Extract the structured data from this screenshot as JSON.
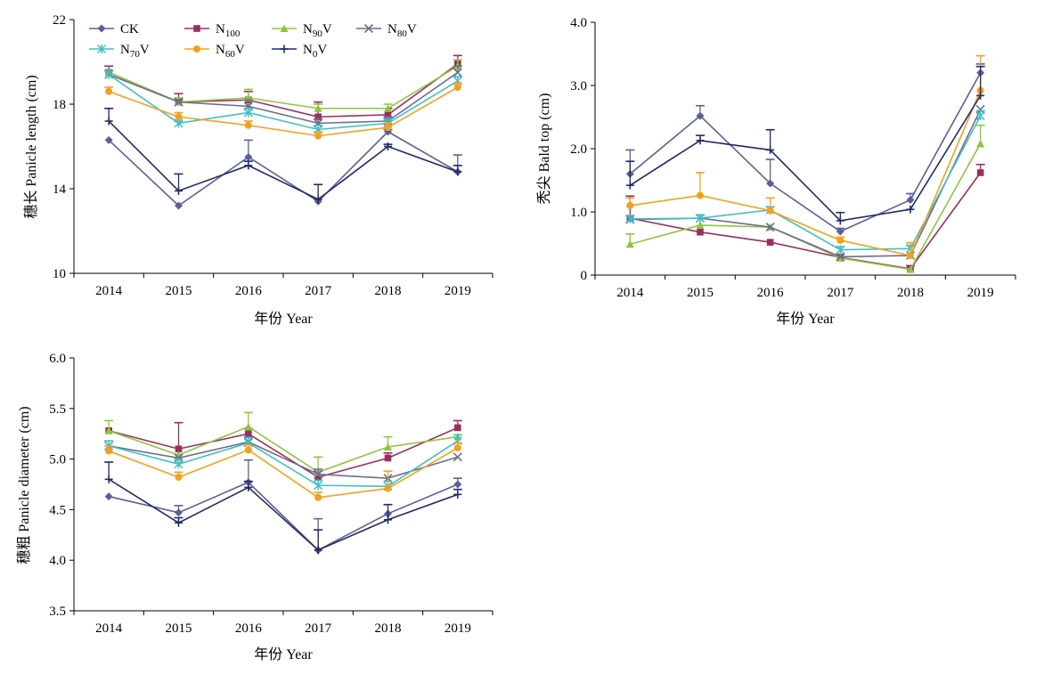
{
  "series_styles": [
    {
      "key": "CK",
      "color": "#5B5F97",
      "marker": "diamond"
    },
    {
      "key": "N100",
      "color": "#9B2D5E",
      "marker": "square"
    },
    {
      "key": "N90V",
      "color": "#8DC63F",
      "marker": "triangle"
    },
    {
      "key": "N80V",
      "color": "#6F6C8E",
      "marker": "x"
    },
    {
      "key": "N70V",
      "color": "#3FBFC8",
      "marker": "asterisk"
    },
    {
      "key": "N60V",
      "color": "#F5A01C",
      "marker": "circle"
    },
    {
      "key": "N0V",
      "color": "#1F2A6B",
      "marker": "plus"
    }
  ],
  "legend": [
    {
      "key": "CK",
      "base": "CK",
      "sub": "",
      "tail": ""
    },
    {
      "key": "N100",
      "base": "N",
      "sub": "100",
      "tail": ""
    },
    {
      "key": "N90V",
      "base": "N",
      "sub": "90",
      "tail": "V"
    },
    {
      "key": "N80V",
      "base": "N",
      "sub": "80",
      "tail": "V"
    },
    {
      "key": "N70V",
      "base": "N",
      "sub": "70",
      "tail": "V"
    },
    {
      "key": "N60V",
      "base": "N",
      "sub": "60",
      "tail": "V"
    },
    {
      "key": "N0V",
      "base": "N",
      "sub": "0",
      "tail": "V"
    }
  ],
  "chart_data": [
    {
      "type": "line",
      "title": "",
      "xlabel": "年份 Year",
      "ylabel": "穗长 Panicle length (cm)",
      "ylim": [
        10,
        22
      ],
      "yticks": [
        10,
        14,
        18,
        22
      ],
      "ytick_labels": [
        "10",
        "14",
        "18",
        "22"
      ],
      "x": [
        "2014",
        "2015",
        "2016",
        "2017",
        "2018",
        "2019"
      ],
      "legend_position": "top-left",
      "series": [
        {
          "key": "CK",
          "name": "CK",
          "values": [
            16.3,
            13.2,
            15.5,
            13.4,
            16.7,
            14.8
          ],
          "errors": [
            0.0,
            0.0,
            0.8,
            0.0,
            0.1,
            0.8
          ]
        },
        {
          "key": "N100",
          "name": "N100",
          "values": [
            19.5,
            18.1,
            18.2,
            17.4,
            17.5,
            19.9
          ],
          "errors": [
            0.3,
            0.4,
            0.4,
            0.7,
            0.3,
            0.4
          ]
        },
        {
          "key": "N90V",
          "name": "N90V",
          "values": [
            19.5,
            18.1,
            18.3,
            17.8,
            17.8,
            19.8
          ],
          "errors": [
            0.0,
            0.2,
            0.4,
            0.2,
            0.2,
            0.3
          ]
        },
        {
          "key": "N80V",
          "name": "N80V",
          "values": [
            19.4,
            18.1,
            17.9,
            17.1,
            17.2,
            19.5
          ],
          "errors": [
            0.2,
            0.1,
            0.3,
            0.2,
            0.2,
            0.3
          ]
        },
        {
          "key": "N70V",
          "name": "N70V",
          "values": [
            19.4,
            17.1,
            17.6,
            16.8,
            17.1,
            19.1
          ],
          "errors": [
            0.2,
            0.1,
            0.2,
            0.2,
            0.2,
            0.2
          ]
        },
        {
          "key": "N60V",
          "name": "N60V",
          "values": [
            18.6,
            17.4,
            17.0,
            16.5,
            16.9,
            18.8
          ],
          "errors": [
            0.2,
            0.2,
            0.2,
            0.2,
            0.2,
            0.2
          ]
        },
        {
          "key": "N0V",
          "name": "N0V",
          "values": [
            17.2,
            13.9,
            15.1,
            13.5,
            16.0,
            14.8
          ],
          "errors": [
            0.6,
            0.8,
            0.2,
            0.7,
            0.1,
            0.3
          ]
        }
      ]
    },
    {
      "type": "line",
      "title": "",
      "xlabel": "年份 Year",
      "ylabel": "秃尖 Bald top (cm)",
      "ylim": [
        0,
        4
      ],
      "yticks": [
        0,
        1,
        2,
        3,
        4
      ],
      "ytick_labels": [
        "0",
        "1.0",
        "2.0",
        "3.0",
        "4.0"
      ],
      "x": [
        "2014",
        "2015",
        "2016",
        "2017",
        "2018",
        "2019"
      ],
      "series": [
        {
          "key": "CK",
          "name": "CK",
          "values": [
            1.6,
            2.52,
            1.45,
            0.69,
            1.19,
            3.2
          ],
          "errors": [
            0.38,
            0.16,
            0.38,
            0.05,
            0.1,
            0.14
          ]
        },
        {
          "key": "N100",
          "name": "N100",
          "values": [
            0.9,
            0.68,
            0.52,
            0.28,
            0.1,
            1.62
          ],
          "errors": [
            0.35,
            0.0,
            0.0,
            0.05,
            0.05,
            0.13
          ]
        },
        {
          "key": "N90V",
          "name": "N90V",
          "values": [
            0.49,
            0.79,
            0.76,
            0.27,
            0.09,
            2.08
          ],
          "errors": [
            0.16,
            0.0,
            0.0,
            0.0,
            0.0,
            0.29
          ]
        },
        {
          "key": "N80V",
          "name": "N80V",
          "values": [
            0.88,
            0.9,
            0.76,
            0.29,
            0.31,
            2.62
          ],
          "errors": [
            0.0,
            0.0,
            0.0,
            0.0,
            0.0,
            0.0
          ]
        },
        {
          "key": "N70V",
          "name": "N70V",
          "values": [
            0.89,
            0.9,
            1.03,
            0.4,
            0.42,
            2.52
          ],
          "errors": [
            0.05,
            0.05,
            0.05,
            0.05,
            0.05,
            0.08
          ]
        },
        {
          "key": "N60V",
          "name": "N60V",
          "values": [
            1.1,
            1.26,
            1.02,
            0.55,
            0.31,
            2.92
          ],
          "errors": [
            0.12,
            0.36,
            0.2,
            0.05,
            0.2,
            0.55
          ]
        },
        {
          "key": "N0V",
          "name": "N0V",
          "values": [
            1.42,
            2.13,
            1.98,
            0.86,
            1.04,
            2.84
          ],
          "errors": [
            0.38,
            0.08,
            0.32,
            0.13,
            0.0,
            0.46
          ]
        }
      ]
    },
    {
      "type": "line",
      "title": "",
      "xlabel": "年份 Year",
      "ylabel": "穗粗 Panicle diameter (cm)",
      "ylim": [
        3.5,
        6.0
      ],
      "yticks": [
        3.5,
        4.0,
        4.5,
        5.0,
        5.5,
        6.0
      ],
      "ytick_labels": [
        "3.5",
        "4.0",
        "4.5",
        "5.0",
        "5.5",
        "6.0"
      ],
      "x": [
        "2014",
        "2015",
        "2016",
        "2017",
        "2018",
        "2019"
      ],
      "series": [
        {
          "key": "CK",
          "name": "CK",
          "values": [
            4.63,
            4.47,
            4.77,
            4.1,
            4.46,
            4.75
          ],
          "errors": [
            0.0,
            0.07,
            0.22,
            0.31,
            0.0,
            0.06
          ]
        },
        {
          "key": "N100",
          "name": "N100",
          "values": [
            5.28,
            5.1,
            5.25,
            4.82,
            5.01,
            5.31
          ],
          "errors": [
            0.0,
            0.26,
            0.05,
            0.06,
            0.05,
            0.07
          ]
        },
        {
          "key": "N90V",
          "name": "N90V",
          "values": [
            5.28,
            5.04,
            5.32,
            4.87,
            5.12,
            5.22
          ],
          "errors": [
            0.1,
            0.0,
            0.14,
            0.15,
            0.1,
            0.0
          ]
        },
        {
          "key": "N80V",
          "name": "N80V",
          "values": [
            5.13,
            5.01,
            5.17,
            4.85,
            4.81,
            5.02
          ],
          "errors": [
            0.0,
            0.0,
            0.05,
            0.05,
            0.0,
            0.0
          ]
        },
        {
          "key": "N70V",
          "name": "N70V",
          "values": [
            5.13,
            4.95,
            5.16,
            4.74,
            4.73,
            5.18
          ],
          "errors": [
            0.05,
            0.05,
            0.05,
            0.05,
            0.05,
            0.06
          ]
        },
        {
          "key": "N60V",
          "name": "N60V",
          "values": [
            5.08,
            4.82,
            5.09,
            4.62,
            4.71,
            5.11
          ],
          "errors": [
            0.05,
            0.05,
            0.05,
            0.05,
            0.17,
            0.05
          ]
        },
        {
          "key": "N0V",
          "name": "N0V",
          "values": [
            4.8,
            4.37,
            4.72,
            4.1,
            4.4,
            4.65
          ],
          "errors": [
            0.17,
            0.05,
            0.06,
            0.2,
            0.15,
            0.05
          ]
        }
      ]
    }
  ]
}
